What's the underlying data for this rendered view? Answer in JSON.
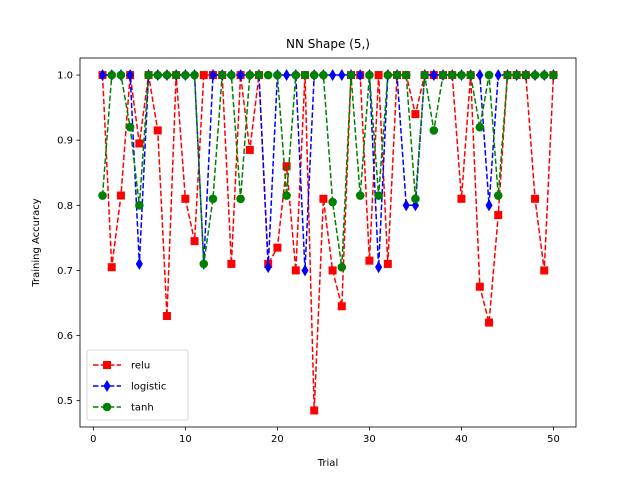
{
  "chart_data": {
    "type": "line",
    "title": "NN Shape (5,)",
    "xlabel": "Trial",
    "ylabel": "Training Accuracy",
    "xlim": [
      -1.45,
      52.45
    ],
    "ylim": [
      0.4596,
      1.0262
    ],
    "xticks": [
      0,
      10,
      20,
      30,
      40,
      50
    ],
    "yticks": [
      0.5,
      0.6,
      0.7,
      0.8,
      0.9,
      1.0
    ],
    "grid": false,
    "legend_position": "lower-left",
    "x": [
      1,
      2,
      3,
      4,
      5,
      6,
      7,
      8,
      9,
      10,
      11,
      12,
      13,
      14,
      15,
      16,
      17,
      18,
      19,
      20,
      21,
      22,
      23,
      24,
      25,
      26,
      27,
      28,
      29,
      30,
      31,
      32,
      33,
      34,
      35,
      36,
      37,
      38,
      39,
      40,
      41,
      42,
      43,
      44,
      45,
      46,
      47,
      48,
      49,
      50
    ],
    "series": [
      {
        "name": "relu",
        "color": "#ff0000",
        "marker": "square",
        "values": [
          1.0,
          0.705,
          0.815,
          1.0,
          0.895,
          1.0,
          0.915,
          0.63,
          1.0,
          0.81,
          0.745,
          1.0,
          1.0,
          1.0,
          0.71,
          1.0,
          0.885,
          1.0,
          0.71,
          0.735,
          0.86,
          0.7,
          1.0,
          0.485,
          0.81,
          0.7,
          0.645,
          1.0,
          1.0,
          0.715,
          1.0,
          0.71,
          1.0,
          1.0,
          0.94,
          1.0,
          1.0,
          1.0,
          1.0,
          0.81,
          1.0,
          0.675,
          0.62,
          0.785,
          1.0,
          1.0,
          1.0,
          0.81,
          0.7,
          1.0
        ]
      },
      {
        "name": "logistic",
        "color": "#0000ff",
        "marker": "thin-diamond",
        "values": [
          1.0,
          1.0,
          1.0,
          1.0,
          0.71,
          1.0,
          1.0,
          1.0,
          1.0,
          1.0,
          1.0,
          0.71,
          1.0,
          1.0,
          1.0,
          1.0,
          1.0,
          1.0,
          0.705,
          1.0,
          1.0,
          1.0,
          0.7,
          1.0,
          1.0,
          1.0,
          1.0,
          1.0,
          1.0,
          1.0,
          0.705,
          1.0,
          1.0,
          0.8,
          0.8,
          1.0,
          1.0,
          1.0,
          1.0,
          1.0,
          1.0,
          1.0,
          0.8,
          1.0,
          1.0,
          1.0,
          1.0,
          1.0,
          1.0,
          1.0
        ]
      },
      {
        "name": "tanh",
        "color": "#008000",
        "marker": "circle",
        "values": [
          0.815,
          1.0,
          1.0,
          0.92,
          0.8,
          1.0,
          1.0,
          1.0,
          1.0,
          1.0,
          1.0,
          0.71,
          0.81,
          1.0,
          1.0,
          0.81,
          1.0,
          1.0,
          1.0,
          1.0,
          0.815,
          1.0,
          1.0,
          1.0,
          1.0,
          0.805,
          0.705,
          1.0,
          0.815,
          1.0,
          0.815,
          1.0,
          1.0,
          1.0,
          0.81,
          1.0,
          0.915,
          1.0,
          1.0,
          1.0,
          1.0,
          0.92,
          1.0,
          0.815,
          1.0,
          1.0,
          1.0,
          1.0,
          1.0,
          1.0
        ]
      }
    ]
  }
}
